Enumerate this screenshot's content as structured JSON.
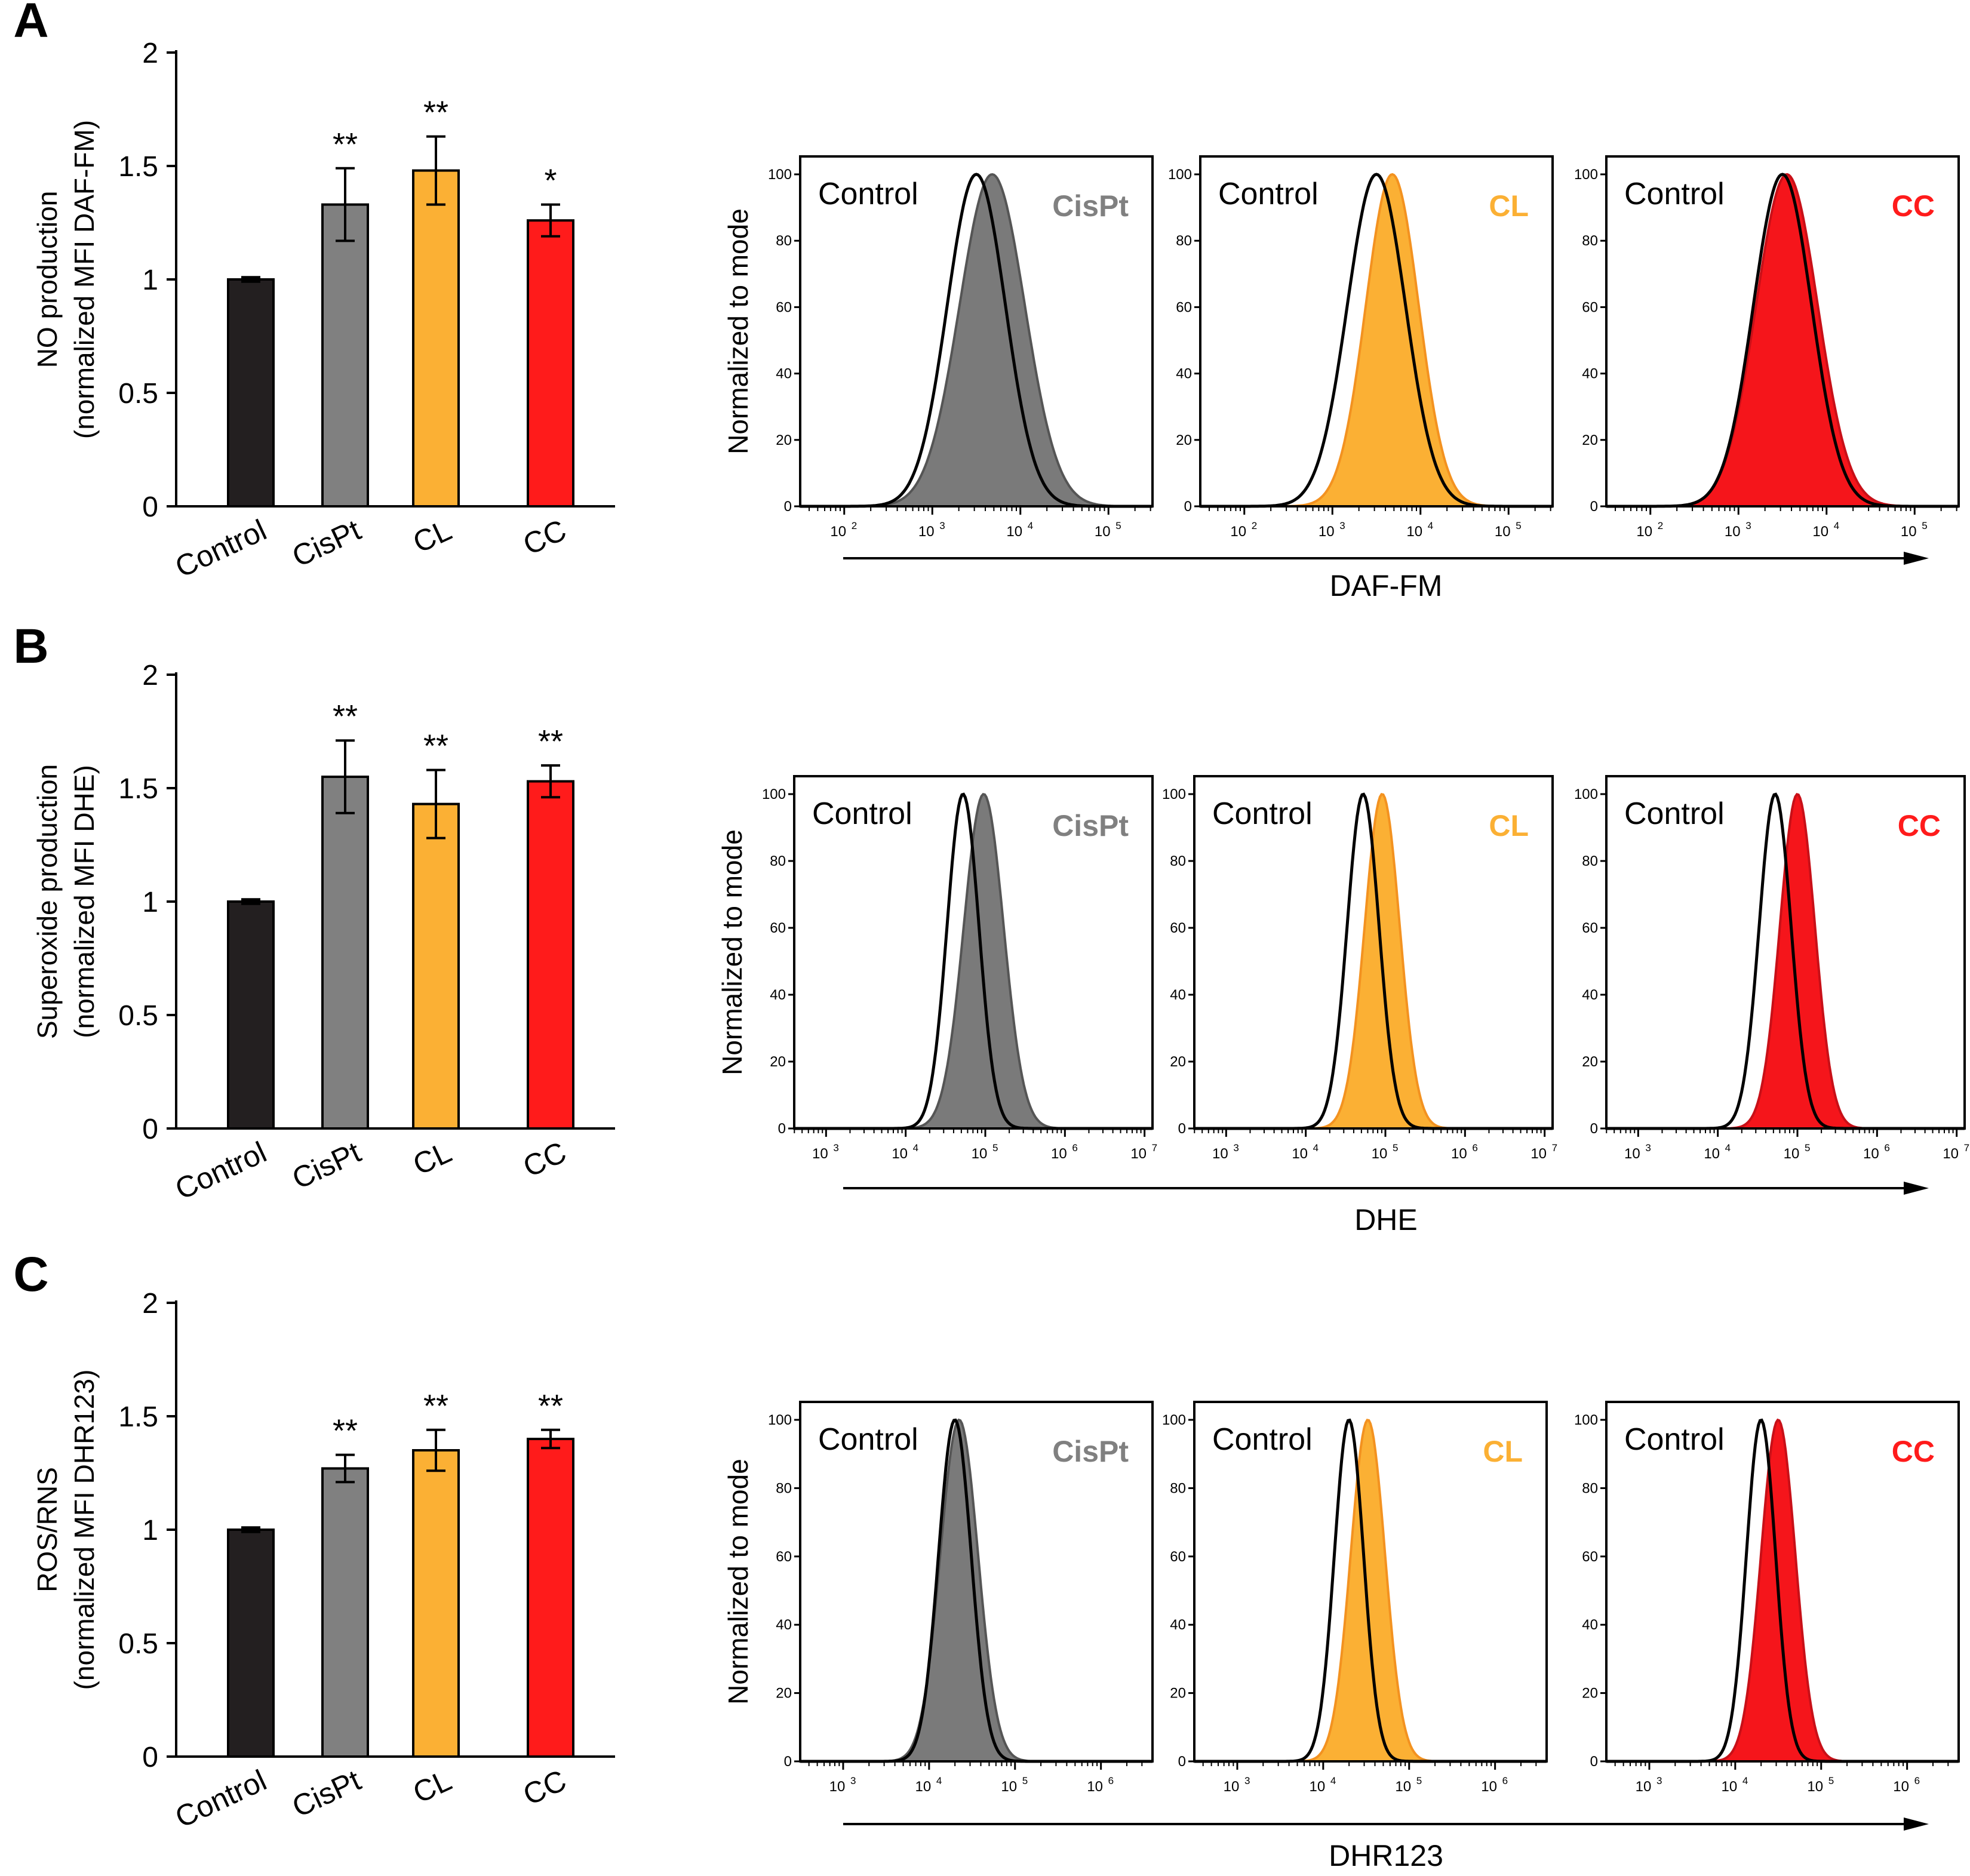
{
  "colors": {
    "Control": "#231f20",
    "CisPt": "#808080",
    "CL": "#fbb034",
    "CC": "#ff1b1b",
    "CisPt_fill": "#7a7a7a",
    "CisPt_edge": "#555555",
    "CL_fill": "#fbb034",
    "CL_edge": "#f39220",
    "CC_fill": "#f5151b",
    "CC_edge": "#c81018",
    "CisPt_text": "#808080",
    "CL_text": "#fbb034",
    "CC_text": "#ff1b1b"
  },
  "chart_data": [
    {
      "type": "bar",
      "panel": "A",
      "categories": [
        "Control",
        "CisPt",
        "CL",
        "CC"
      ],
      "values": [
        1.0,
        1.33,
        1.48,
        1.26
      ],
      "errors": [
        0.01,
        0.16,
        0.15,
        0.07
      ],
      "significance": [
        "",
        "**",
        "**",
        "*"
      ],
      "ylabel_line1": "NO production",
      "ylabel_line2": "(normalized MFI DAF-FM)",
      "ylim": [
        0,
        2
      ],
      "yticks": [
        0,
        0.5,
        1,
        1.5,
        2
      ],
      "ytick_labels": [
        "0",
        "0.5",
        "1",
        "1.5",
        "2"
      ]
    },
    {
      "type": "bar",
      "panel": "B",
      "categories": [
        "Control",
        "CisPt",
        "CL",
        "CC"
      ],
      "values": [
        1.0,
        1.55,
        1.43,
        1.53
      ],
      "errors": [
        0.01,
        0.16,
        0.15,
        0.07
      ],
      "significance": [
        "",
        "**",
        "**",
        "**"
      ],
      "ylabel_line1": "Superoxide production",
      "ylabel_line2": "(normalized MFI DHE)",
      "ylim": [
        0,
        2
      ],
      "yticks": [
        0,
        0.5,
        1,
        1.5,
        2
      ],
      "ytick_labels": [
        "0",
        "0.5",
        "1",
        "1.5",
        "2"
      ]
    },
    {
      "type": "bar",
      "panel": "C",
      "categories": [
        "Control",
        "CisPt",
        "CL",
        "CC"
      ],
      "values": [
        1.0,
        1.27,
        1.35,
        1.4
      ],
      "errors": [
        0.01,
        0.06,
        0.09,
        0.04
      ],
      "significance": [
        "",
        "**",
        "**",
        "**"
      ],
      "ylabel_line1": "ROS/RNS",
      "ylabel_line2": "(normalized MFI DHR123)",
      "ylim": [
        0,
        2
      ],
      "yticks": [
        0,
        0.5,
        1,
        1.5,
        2
      ],
      "ytick_labels": [
        "0",
        "0.5",
        "1",
        "1.5",
        "2"
      ]
    },
    {
      "type": "area",
      "subtype": "flow-cytometry-histogram",
      "row": "A",
      "xlabel": "DAF-FM",
      "ylabel": "Normalized to mode",
      "xscale": "log10",
      "xlim_log10": [
        1.5,
        5.5
      ],
      "xtick_exponents": [
        2,
        3,
        4,
        5
      ],
      "ylim": [
        0,
        100
      ],
      "yticks": [
        0,
        20,
        40,
        60,
        80,
        100
      ],
      "ytick_labels": [
        "0",
        "20",
        "40",
        "60",
        "80",
        "100"
      ],
      "histograms": [
        {
          "control_label": "Control",
          "treatment": "CisPt",
          "control_peak_log10": 3.5,
          "control_width": 0.33,
          "treatment_peak_log10": 3.68,
          "treatment_width": 0.37
        },
        {
          "control_label": "Control",
          "treatment": "CL",
          "control_peak_log10": 3.5,
          "control_width": 0.33,
          "treatment_peak_log10": 3.68,
          "treatment_width": 0.3
        },
        {
          "control_label": "Control",
          "treatment": "CC",
          "control_peak_log10": 3.5,
          "control_width": 0.33,
          "treatment_peak_log10": 3.55,
          "treatment_width": 0.35
        }
      ]
    },
    {
      "type": "area",
      "subtype": "flow-cytometry-histogram",
      "row": "B",
      "xlabel": "DHE",
      "ylabel": "Normalized to mode",
      "xscale": "log10",
      "xlim_log10": [
        2.6,
        7.1
      ],
      "xtick_exponents": [
        3,
        4,
        5,
        6,
        7
      ],
      "ylim": [
        0,
        100
      ],
      "yticks": [
        0,
        20,
        40,
        60,
        80,
        100
      ],
      "ytick_labels": [
        "0",
        "20",
        "40",
        "60",
        "80",
        "100"
      ],
      "histograms": [
        {
          "control_label": "Control",
          "treatment": "CisPt",
          "control_peak_log10": 4.72,
          "control_width": 0.2,
          "treatment_peak_log10": 4.98,
          "treatment_width": 0.25
        },
        {
          "control_label": "Control",
          "treatment": "CL",
          "control_peak_log10": 4.72,
          "control_width": 0.2,
          "treatment_peak_log10": 4.96,
          "treatment_width": 0.22
        },
        {
          "control_label": "Control",
          "treatment": "CC",
          "control_peak_log10": 4.72,
          "control_width": 0.2,
          "treatment_peak_log10": 5.0,
          "treatment_width": 0.22
        }
      ]
    },
    {
      "type": "area",
      "subtype": "flow-cytometry-histogram",
      "row": "C",
      "xlabel": "DHR123",
      "ylabel": "Normalized to mode",
      "xscale": "log10",
      "xlim_log10": [
        2.5,
        6.6
      ],
      "xtick_exponents": [
        3,
        4,
        5,
        6
      ],
      "ylim": [
        0,
        100
      ],
      "yticks": [
        0,
        20,
        40,
        60,
        80,
        100
      ],
      "ytick_labels": [
        "0",
        "20",
        "40",
        "60",
        "80",
        "100"
      ],
      "histograms": [
        {
          "control_label": "Control",
          "treatment": "CisPt",
          "control_peak_log10": 4.3,
          "control_width": 0.19,
          "treatment_peak_log10": 4.35,
          "treatment_width": 0.22
        },
        {
          "control_label": "Control",
          "treatment": "CL",
          "control_peak_log10": 4.3,
          "control_width": 0.17,
          "treatment_peak_log10": 4.52,
          "treatment_width": 0.2
        },
        {
          "control_label": "Control",
          "treatment": "CC",
          "control_peak_log10": 4.3,
          "control_width": 0.17,
          "treatment_peak_log10": 4.5,
          "treatment_width": 0.2
        }
      ]
    }
  ],
  "panel_letters": [
    "A",
    "B",
    "C"
  ]
}
